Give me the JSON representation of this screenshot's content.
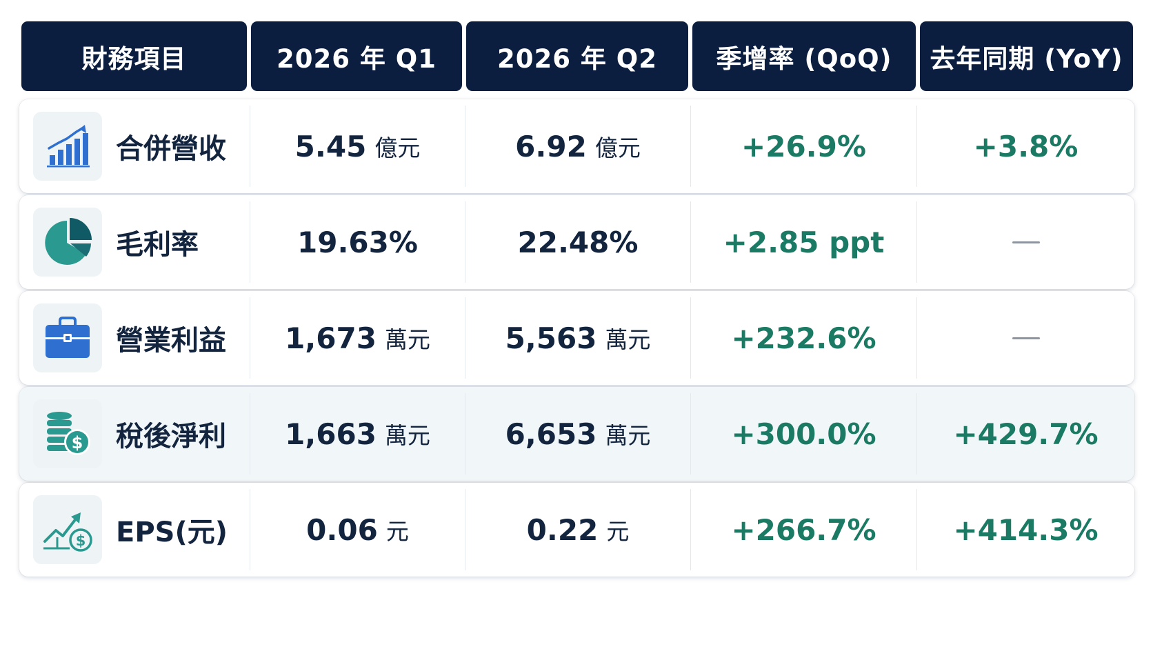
{
  "header": {
    "col1": "財務項目",
    "col2": "2026 年 Q1",
    "col3": "2026 年 Q2",
    "col4": "季增率 (QoQ)",
    "col5": "去年同期 (YoY)"
  },
  "rows": [
    {
      "icon": "bar-chart-growth-icon",
      "label": "合併營收",
      "q1": "5.45",
      "q1_unit": "億元",
      "q2": "6.92",
      "q2_unit": "億元",
      "qoq": "+26.9%",
      "yoy": "+3.8%"
    },
    {
      "icon": "pie-chart-icon",
      "label": "毛利率",
      "q1": "19.63%",
      "q1_unit": "",
      "q2": "22.48%",
      "q2_unit": "",
      "qoq": "+2.85 ppt",
      "yoy": "—"
    },
    {
      "icon": "briefcase-icon",
      "label": "營業利益",
      "q1": "1,673",
      "q1_unit": "萬元",
      "q2": "5,563",
      "q2_unit": "萬元",
      "qoq": "+232.6%",
      "yoy": "—"
    },
    {
      "icon": "coins-dollar-icon",
      "label": "稅後淨利",
      "q1": "1,663",
      "q1_unit": "萬元",
      "q2": "6,653",
      "q2_unit": "萬元",
      "qoq": "+300.0%",
      "yoy": "+429.7%"
    },
    {
      "icon": "trend-up-dollar-icon",
      "label": "EPS(元)",
      "q1": "0.06",
      "q1_unit": "元",
      "q2": "0.22",
      "q2_unit": "元",
      "qoq": "+266.7%",
      "yoy": "+414.3%"
    }
  ],
  "colors": {
    "header_bg": "#0c1e3f",
    "text_dark": "#13243f",
    "growth_green": "#1b7a64",
    "highlight_row_bg": "#f1f7f8",
    "icon_blue": "#2f6fd0",
    "icon_teal": "#2a9a90"
  }
}
